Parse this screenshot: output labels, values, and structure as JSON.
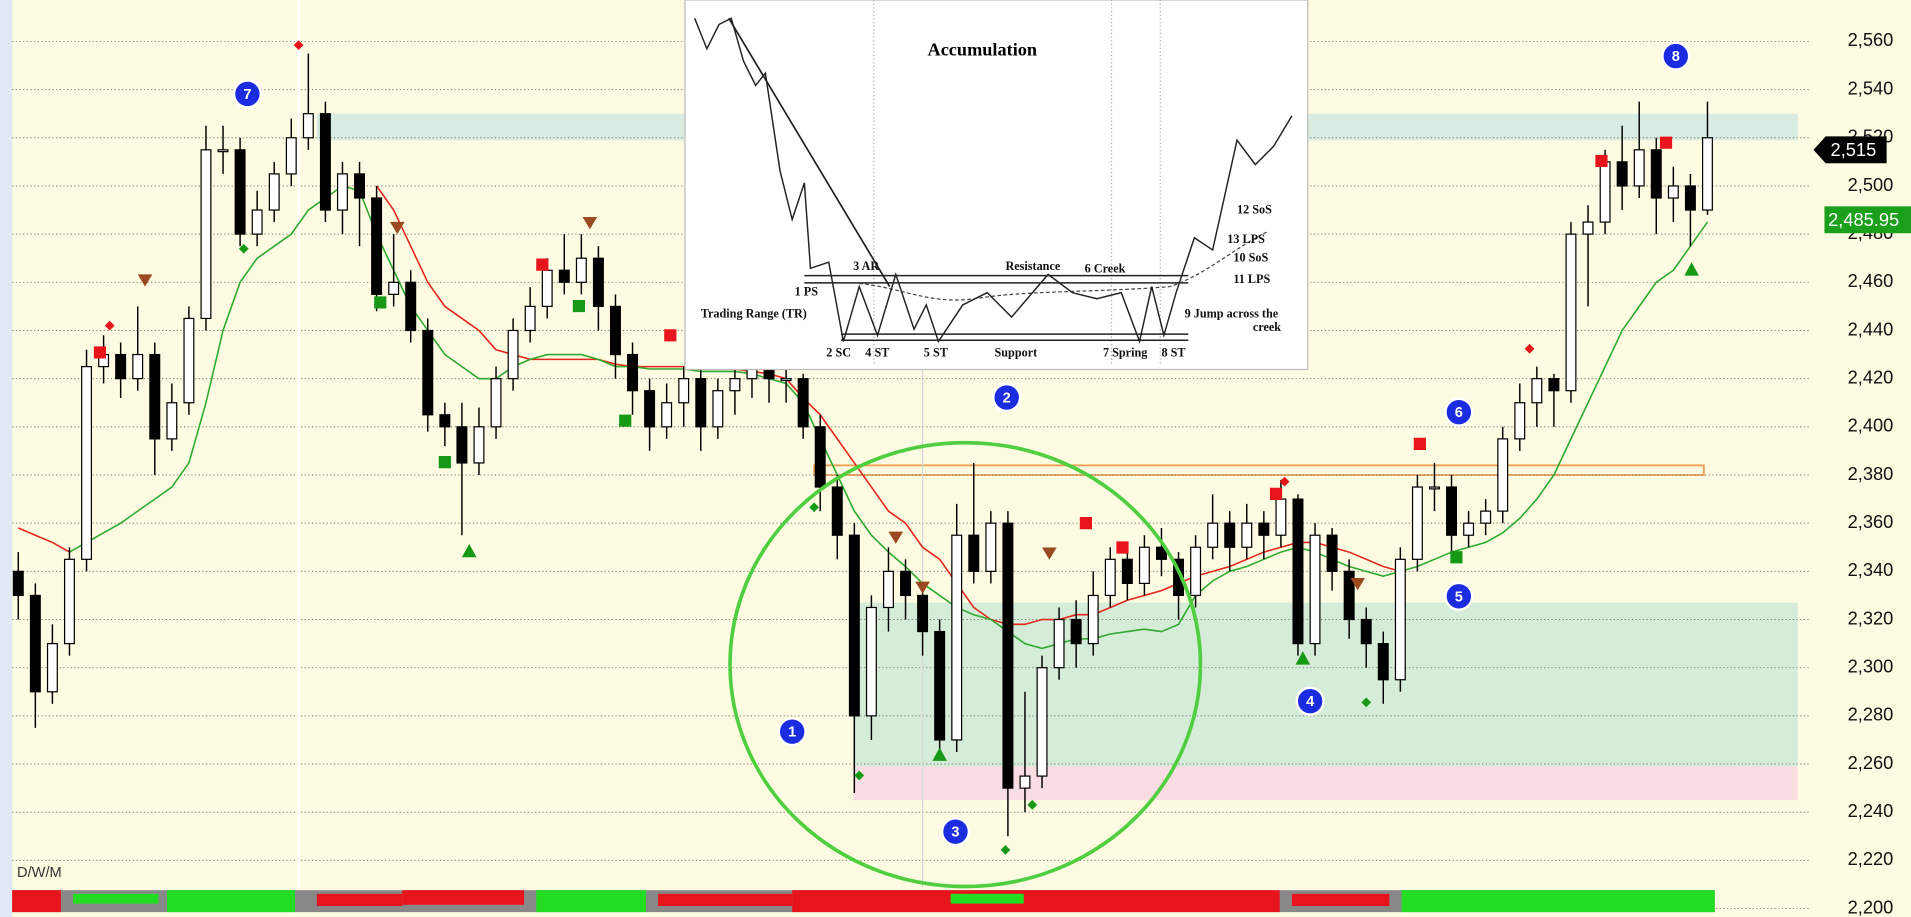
{
  "chart_data": {
    "type": "candlestick",
    "timeframe_label": "D/W/M",
    "ylim": [
      2196.5,
      2577.2
    ],
    "yticks": [
      {
        "value": 2200,
        "label": "2,200"
      },
      {
        "value": 2220,
        "label": "2,220"
      },
      {
        "value": 2240,
        "label": "2,240"
      },
      {
        "value": 2260,
        "label": "2,260"
      },
      {
        "value": 2280,
        "label": "2,280"
      },
      {
        "value": 2300,
        "label": "2,300"
      },
      {
        "value": 2320,
        "label": "2,320"
      },
      {
        "value": 2340,
        "label": "2,340"
      },
      {
        "value": 2360,
        "label": "2,360"
      },
      {
        "value": 2380,
        "label": "2,380"
      },
      {
        "value": 2400,
        "label": "2,400"
      },
      {
        "value": 2420,
        "label": "2,420"
      },
      {
        "value": 2440,
        "label": "2,440"
      },
      {
        "value": 2460,
        "label": "2,460"
      },
      {
        "value": 2480,
        "label": "2,480"
      },
      {
        "value": 2500,
        "label": "2,500"
      },
      {
        "value": 2520,
        "label": "2,520"
      },
      {
        "value": 2540,
        "label": "2,540"
      },
      {
        "value": 2560,
        "label": "2,560"
      }
    ],
    "grid": true,
    "up_color": "#ffffff",
    "down_color": "#000000",
    "open": [
      2340,
      2330,
      2290,
      2310,
      2345,
      2425,
      2430,
      2420,
      2430,
      2395,
      2410,
      2445,
      2515,
      2515,
      2480,
      2490,
      2505,
      2520,
      2530,
      2490,
      2505,
      2495,
      2455,
      2460,
      2440,
      2405,
      2400,
      2385,
      2400,
      2420,
      2440,
      2450,
      2465,
      2460,
      2470,
      2450,
      2430,
      2415,
      2400,
      2410,
      2420,
      2400,
      2415,
      2420,
      2425,
      2420,
      2420,
      2400,
      2375,
      2355,
      2280,
      2325,
      2340,
      2330,
      2315,
      2270,
      2355,
      2340,
      2360,
      2250,
      2255,
      2300,
      2320,
      2310,
      2330,
      2345,
      2335,
      2350,
      2345,
      2330,
      2350,
      2360,
      2350,
      2360,
      2355,
      2370,
      2310,
      2355,
      2340,
      2320,
      2310,
      2295,
      2345,
      2375,
      2375,
      2355,
      2360,
      2365,
      2395,
      2410,
      2420,
      2415,
      2480,
      2485,
      2510,
      2500,
      2515,
      2495,
      2500,
      2490
    ],
    "high": [
      2348,
      2335,
      2318,
      2350,
      2432,
      2438,
      2435,
      2450,
      2435,
      2418,
      2450,
      2525,
      2525,
      2520,
      2498,
      2510,
      2528,
      2555,
      2535,
      2510,
      2510,
      2500,
      2480,
      2465,
      2445,
      2410,
      2410,
      2408,
      2425,
      2445,
      2458,
      2470,
      2480,
      2480,
      2475,
      2455,
      2435,
      2420,
      2418,
      2425,
      2425,
      2420,
      2425,
      2430,
      2430,
      2425,
      2422,
      2405,
      2380,
      2360,
      2330,
      2350,
      2345,
      2335,
      2320,
      2368,
      2385,
      2365,
      2365,
      2290,
      2305,
      2325,
      2328,
      2340,
      2350,
      2350,
      2355,
      2358,
      2348,
      2355,
      2372,
      2365,
      2368,
      2365,
      2378,
      2372,
      2360,
      2358,
      2345,
      2325,
      2315,
      2350,
      2380,
      2385,
      2380,
      2365,
      2370,
      2400,
      2418,
      2425,
      2422,
      2485,
      2492,
      2515,
      2525,
      2535,
      2520,
      2508,
      2505,
      2535
    ],
    "low": [
      2320,
      2275,
      2285,
      2305,
      2340,
      2418,
      2412,
      2415,
      2380,
      2390,
      2405,
      2440,
      2505,
      2475,
      2475,
      2485,
      2500,
      2515,
      2485,
      2480,
      2475,
      2448,
      2450,
      2435,
      2398,
      2392,
      2355,
      2380,
      2395,
      2415,
      2435,
      2445,
      2455,
      2455,
      2440,
      2420,
      2405,
      2390,
      2395,
      2400,
      2390,
      2395,
      2405,
      2412,
      2410,
      2410,
      2395,
      2365,
      2345,
      2248,
      2270,
      2315,
      2320,
      2305,
      2262,
      2265,
      2335,
      2335,
      2230,
      2240,
      2250,
      2295,
      2300,
      2305,
      2325,
      2328,
      2330,
      2338,
      2320,
      2325,
      2345,
      2340,
      2345,
      2345,
      2350,
      2305,
      2305,
      2332,
      2312,
      2300,
      2285,
      2290,
      2340,
      2365,
      2345,
      2350,
      2355,
      2360,
      2390,
      2400,
      2400,
      2410,
      2450,
      2480,
      2490,
      2495,
      2480,
      2485,
      2475,
      2488
    ],
    "close": [
      2330,
      2290,
      2310,
      2345,
      2425,
      2430,
      2420,
      2430,
      2395,
      2410,
      2445,
      2515,
      2515,
      2480,
      2490,
      2505,
      2520,
      2530,
      2490,
      2505,
      2495,
      2455,
      2460,
      2440,
      2405,
      2400,
      2385,
      2400,
      2420,
      2440,
      2450,
      2465,
      2460,
      2470,
      2450,
      2430,
      2415,
      2400,
      2410,
      2420,
      2400,
      2415,
      2420,
      2425,
      2420,
      2420,
      2400,
      2375,
      2355,
      2280,
      2325,
      2340,
      2330,
      2315,
      2270,
      2355,
      2340,
      2360,
      2250,
      2255,
      2300,
      2320,
      2310,
      2330,
      2345,
      2335,
      2350,
      2345,
      2330,
      2350,
      2360,
      2350,
      2360,
      2355,
      2370,
      2310,
      2355,
      2340,
      2320,
      2310,
      2295,
      2345,
      2375,
      2375,
      2355,
      2360,
      2365,
      2395,
      2410,
      2420,
      2415,
      2480,
      2485,
      2510,
      2500,
      2515,
      2495,
      2500,
      2490,
      2520
    ],
    "moving_averages": [
      {
        "color": "#e5261c",
        "values": [
          2358,
          2355,
          2352,
          2348,
          null,
          null,
          null,
          null,
          null,
          null,
          null,
          null,
          null,
          null,
          null,
          null,
          null,
          null,
          null,
          null,
          null,
          2500,
          2490,
          2475,
          2460,
          2450,
          2445,
          2440,
          2432,
          2430,
          2428,
          2428,
          2428,
          2428,
          2428,
          2426,
          2425,
          2425,
          2425,
          2425,
          2425,
          2424,
          2424,
          2423,
          2422,
          2420,
          2412,
          2405,
          2395,
          2385,
          2375,
          2365,
          2360,
          2350,
          2345,
          2335,
          2325,
          2320,
          2318,
          2318,
          2320,
          2320,
          2322,
          2322,
          2325,
          2328,
          2330,
          2332,
          2335,
          2338,
          2340,
          2342,
          2345,
          2348,
          2350,
          2352,
          2352,
          2350,
          2348,
          2345,
          2342,
          2340,
          null,
          null,
          null,
          null,
          null,
          null,
          null,
          null,
          null,
          null,
          null,
          null,
          null,
          null,
          null,
          null,
          null,
          null
        ]
      },
      {
        "color": "#2faa2f",
        "values": [
          null,
          null,
          null,
          2348,
          2352,
          2356,
          2360,
          2365,
          2370,
          2375,
          2385,
          2410,
          2440,
          2460,
          2470,
          2475,
          2480,
          2490,
          2495,
          2500,
          2498,
          2480,
          2465,
          2450,
          2440,
          2430,
          2425,
          2420,
          2420,
          2425,
          2428,
          2430,
          2430,
          2430,
          2428,
          2425,
          2425,
          2424,
          2424,
          2424,
          2423,
          2423,
          2423,
          2422,
          2420,
          2418,
          2410,
          2395,
          2380,
          2365,
          2355,
          2348,
          2342,
          2335,
          2330,
          2325,
          2322,
          2320,
          2315,
          2310,
          2308,
          2310,
          2312,
          2312,
          2314,
          2315,
          2316,
          2315,
          2318,
          2330,
          2336,
          2340,
          2342,
          2345,
          2348,
          2350,
          2348,
          2345,
          2342,
          2340,
          2338,
          2340,
          2342,
          2345,
          2348,
          2350,
          2352,
          2356,
          2362,
          2370,
          2380,
          2395,
          2410,
          2425,
          2440,
          2450,
          2460,
          2465,
          2475,
          2485
        ]
      }
    ],
    "zones": [
      {
        "from": 2519,
        "to": 2530,
        "color": "#d8ece2"
      },
      {
        "from": 2259,
        "to": 2327,
        "color": "#d5ecd9"
      },
      {
        "from": 2245,
        "to": 2259,
        "color": "#f9dde2"
      },
      {
        "from": 2380,
        "to": 2384,
        "color": "#f6d2a8"
      }
    ],
    "price_labels": [
      {
        "value": 2515,
        "label": "2,515",
        "color": "#000000"
      },
      {
        "value": 2485.95,
        "label": "2,485.95",
        "color": "#1aa01a"
      }
    ],
    "wave_labels": [
      "1",
      "2",
      "3",
      "4",
      "5",
      "6",
      "7",
      "8"
    ],
    "inset": {
      "title": "Accumulation",
      "labels": [
        "3 AR",
        "Resistance",
        "6 Creek",
        "1 PS",
        "Trading Range (TR)",
        "2 SC",
        "4 ST",
        "5 ST",
        "Support",
        "7 Spring",
        "8 ST",
        "12 SoS",
        "13 LPS",
        "10 SoS",
        "11 LPS",
        "9 Jump across the",
        "creek"
      ]
    }
  }
}
